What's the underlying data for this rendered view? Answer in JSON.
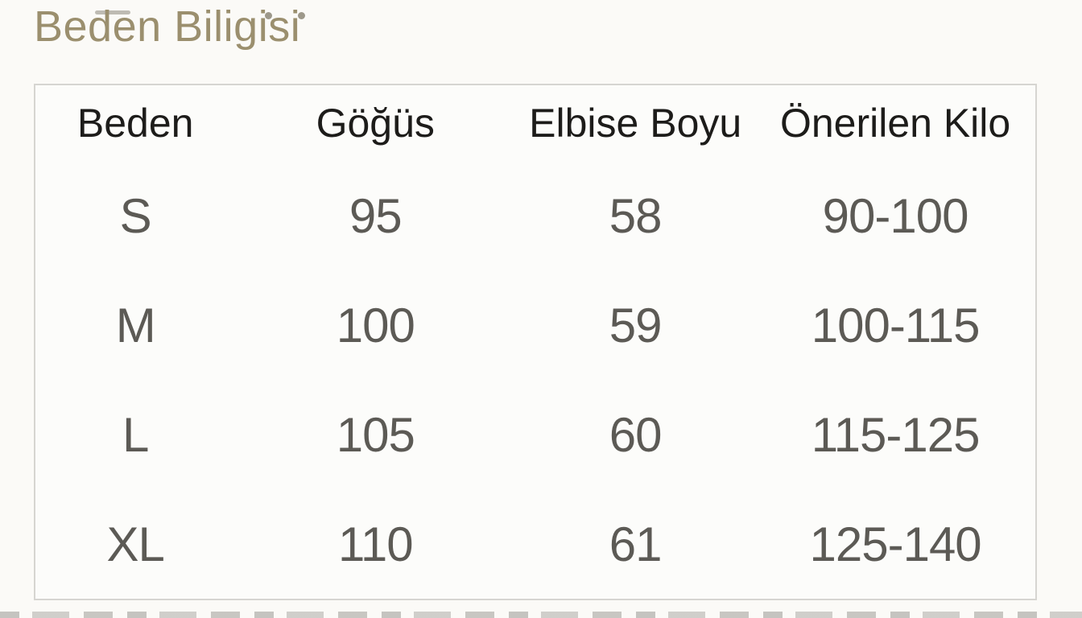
{
  "section": {
    "title": "Beden Biligisi"
  },
  "table": {
    "headers": [
      "Beden",
      "Göğüs",
      "Elbise Boyu",
      "Önerilen Kilo"
    ],
    "rows": [
      [
        "S",
        "95",
        "58",
        "90-100"
      ],
      [
        "M",
        "100",
        "59",
        "100-115"
      ],
      [
        "L",
        "105",
        "60",
        "115-125"
      ],
      [
        "XL",
        "110",
        "61",
        "125-140"
      ]
    ]
  },
  "colors": {
    "title_text": "#9b8f6e",
    "header_text": "#1d1c1a",
    "cell_text": "#5c5a55",
    "table_border": "#d6d5d1",
    "page_bg": "#fbfaf7",
    "table_bg": "#fcfcfa"
  }
}
